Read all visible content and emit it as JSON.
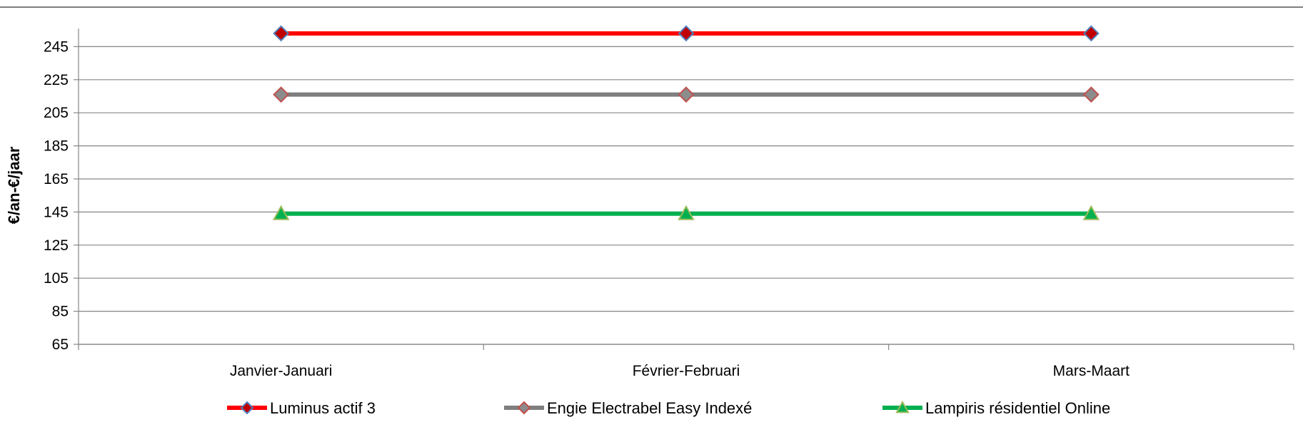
{
  "chart_data": {
    "type": "line",
    "title": "",
    "xlabel": "",
    "ylabel": "€/an-€/jaar",
    "categories": [
      "Janvier-Januari",
      "Février-Februari",
      "Mars-Maart"
    ],
    "yticks": [
      65,
      85,
      105,
      125,
      145,
      165,
      185,
      205,
      225,
      245
    ],
    "ylim": [
      65,
      255
    ],
    "grid": true,
    "legend_position": "bottom",
    "series": [
      {
        "name": "Luminus actif 3",
        "values": [
          253,
          253,
          253
        ],
        "color": "#ff0000",
        "marker": "diamond",
        "marker_color": "#c00000",
        "marker_edge": "#4f81bd"
      },
      {
        "name": "Engie Electrabel Easy Indexé",
        "values": [
          216,
          216,
          216
        ],
        "color": "#7f7f7f",
        "marker": "diamond",
        "marker_color": "#8c8c8c",
        "marker_edge": "#c0504d"
      },
      {
        "name": "Lampiris résidentiel Online",
        "values": [
          144,
          144,
          144
        ],
        "color": "#00b050",
        "marker": "triangle",
        "marker_color": "#00b050",
        "marker_edge": "#9bbb59"
      }
    ]
  }
}
